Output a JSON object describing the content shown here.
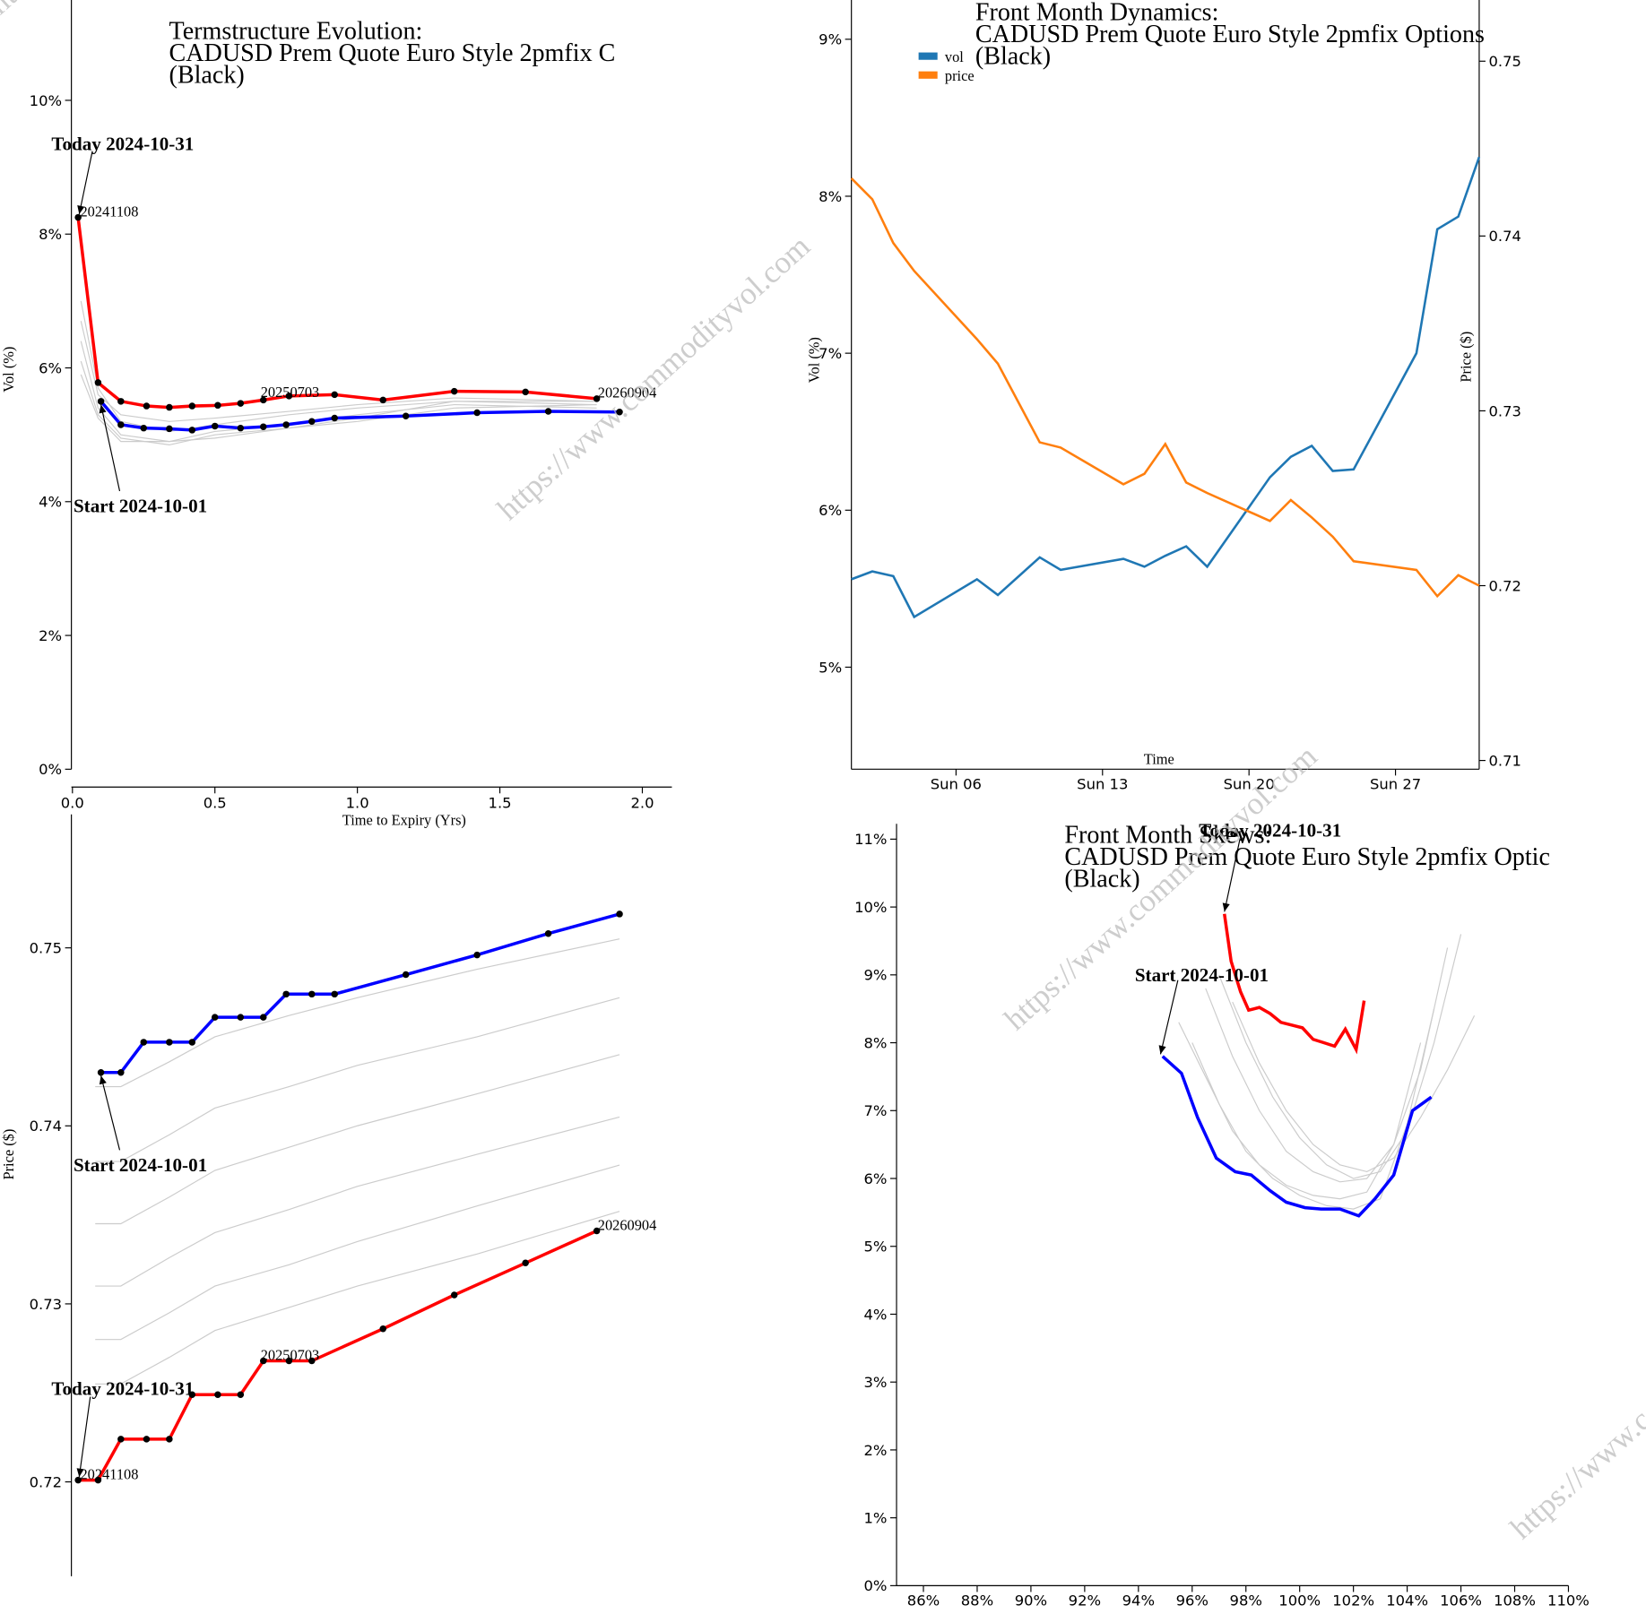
{
  "watermark": "https://www.commodityvol.com",
  "colors": {
    "start": "#0000ff",
    "today": "#ff0000",
    "history": "#cccccc",
    "vol": "#1f77b4",
    "price": "#ff7f0e"
  },
  "chart_data": [
    {
      "id": "termstructure",
      "type": "line",
      "title_lines": [
        "Termstructure Evolution:",
        "CADUSD Prem Quote Euro Style 2pmfix C",
        "(Black)"
      ],
      "xlabel": "Time to Expiry (Yrs)",
      "ylabel": "Vol (%)",
      "xlim": [
        0,
        2.1
      ],
      "ylim": [
        0,
        11.5
      ],
      "xticks": [
        "0.0",
        "0.5",
        "1.0",
        "1.5",
        "2.0"
      ],
      "xtick_values": [
        0,
        0.5,
        1.0,
        1.5,
        2.0
      ],
      "yticks": [
        "0%",
        "2%",
        "4%",
        "6%",
        "8%",
        "10%"
      ],
      "ytick_values": [
        0,
        2,
        4,
        6,
        8,
        10
      ],
      "annotations": {
        "today": "Today 2024-10-31",
        "start": "Start 2024-10-01"
      },
      "point_labels": [
        "20241108",
        "20250703",
        "20260904"
      ],
      "series": [
        {
          "name": "Today 2024-10-31",
          "role": "today",
          "x": [
            0.02,
            0.09,
            0.17,
            0.26,
            0.34,
            0.42,
            0.51,
            0.59,
            0.67,
            0.76,
            0.92,
            1.09,
            1.34,
            1.59,
            1.84
          ],
          "y": [
            8.25,
            5.78,
            5.5,
            5.43,
            5.41,
            5.43,
            5.44,
            5.47,
            5.52,
            5.58,
            5.6,
            5.52,
            5.65,
            5.64,
            5.54
          ]
        },
        {
          "name": "Start 2024-10-01",
          "role": "start",
          "x": [
            0.1,
            0.17,
            0.25,
            0.34,
            0.42,
            0.5,
            0.59,
            0.67,
            0.75,
            0.84,
            0.92,
            1.17,
            1.42,
            1.67,
            1.92
          ],
          "y": [
            5.5,
            5.15,
            5.1,
            5.09,
            5.07,
            5.13,
            5.1,
            5.12,
            5.15,
            5.2,
            5.25,
            5.28,
            5.33,
            5.35,
            5.34
          ]
        },
        {
          "name": "",
          "role": "history",
          "x": [
            0.03,
            0.09,
            0.17,
            0.34,
            0.5,
            0.76,
            1.0,
            1.34,
            1.84
          ],
          "y": [
            7.0,
            5.7,
            5.2,
            5.05,
            5.15,
            5.3,
            5.4,
            5.5,
            5.45
          ]
        },
        {
          "name": "",
          "role": "history",
          "x": [
            0.03,
            0.09,
            0.17,
            0.34,
            0.5,
            0.76,
            1.0,
            1.34,
            1.84
          ],
          "y": [
            6.4,
            5.4,
            5.0,
            4.9,
            5.05,
            5.15,
            5.3,
            5.45,
            5.4
          ]
        },
        {
          "name": "",
          "role": "history",
          "x": [
            0.03,
            0.09,
            0.17,
            0.34,
            0.5,
            0.76,
            1.0,
            1.34,
            1.84
          ],
          "y": [
            6.1,
            5.3,
            4.95,
            4.85,
            5.0,
            5.1,
            5.25,
            5.5,
            5.5
          ]
        },
        {
          "name": "",
          "role": "history",
          "x": [
            0.03,
            0.09,
            0.17,
            0.34,
            0.5,
            0.76,
            1.0,
            1.34,
            1.84
          ],
          "y": [
            6.7,
            5.6,
            5.3,
            5.2,
            5.25,
            5.35,
            5.45,
            5.55,
            5.5
          ]
        },
        {
          "name": "",
          "role": "history",
          "x": [
            0.03,
            0.09,
            0.17,
            0.34,
            0.5,
            0.76,
            1.0,
            1.34,
            1.84
          ],
          "y": [
            5.9,
            5.25,
            4.9,
            4.9,
            4.95,
            5.1,
            5.2,
            5.4,
            5.45
          ]
        }
      ]
    },
    {
      "id": "frontmonth",
      "type": "line",
      "title_lines": [
        "Front Month Dynamics:",
        "CADUSD Prem Quote Euro Style 2pmfix Options",
        "(Black)"
      ],
      "xlabel": "Time",
      "ylabel": "Vol (%)",
      "y2label": "Price ($)",
      "ylim": [
        4.35,
        9.25
      ],
      "y2lim": [
        0.7095,
        0.7535
      ],
      "xlim": [
        1,
        31
      ],
      "xticks": [
        "Sun 06",
        "Sun 13",
        "Sun 20",
        "Sun 27"
      ],
      "xtick_values": [
        6,
        13,
        20,
        27
      ],
      "yticks": [
        "5%",
        "6%",
        "7%",
        "8%",
        "9%"
      ],
      "ytick_values": [
        5,
        6,
        7,
        8,
        9
      ],
      "y2ticks": [
        "0.71",
        "0.72",
        "0.73",
        "0.74",
        "0.75"
      ],
      "y2tick_values": [
        0.71,
        0.72,
        0.73,
        0.74,
        0.75
      ],
      "legend": [
        "vol",
        "price"
      ],
      "legend_position": "top-left",
      "series": [
        {
          "name": "vol",
          "axis": "left",
          "x": [
            1,
            2,
            3,
            4,
            7,
            8,
            10,
            11,
            14,
            15,
            16,
            17,
            18,
            21,
            22,
            23,
            24,
            25,
            28,
            29,
            30,
            31
          ],
          "y": [
            5.56,
            5.61,
            5.58,
            5.32,
            5.56,
            5.46,
            5.7,
            5.62,
            5.69,
            5.64,
            5.71,
            5.77,
            5.64,
            6.21,
            6.34,
            6.41,
            6.25,
            6.26,
            7.0,
            7.79,
            7.87,
            8.25
          ]
        },
        {
          "name": "price",
          "axis": "right",
          "x": [
            1,
            2,
            3,
            4,
            7,
            8,
            10,
            11,
            14,
            15,
            16,
            17,
            18,
            21,
            22,
            23,
            24,
            25,
            28,
            29,
            30,
            31
          ],
          "y": [
            0.7433,
            0.7421,
            0.7396,
            0.738,
            0.7341,
            0.7327,
            0.7282,
            0.7279,
            0.7258,
            0.7264,
            0.7281,
            0.7259,
            0.7253,
            0.7237,
            0.7249,
            0.7239,
            0.7228,
            0.7214,
            0.7209,
            0.7194,
            0.7206,
            0.72
          ]
        }
      ]
    },
    {
      "id": "forwardcurve",
      "type": "line",
      "title_lines": [],
      "ylabel": "Price ($)",
      "xlim": [
        0,
        2.1
      ],
      "ylim": [
        0.7147,
        0.7575
      ],
      "yticks": [
        "0.72",
        "0.73",
        "0.74",
        "0.75"
      ],
      "ytick_values": [
        0.72,
        0.73,
        0.74,
        0.75
      ],
      "annotations": {
        "today": "Today 2024-10-31",
        "start": "Start 2024-10-01"
      },
      "point_labels": [
        "20241108",
        "20250703",
        "20260904"
      ],
      "series": [
        {
          "name": "Start 2024-10-01",
          "role": "start",
          "x": [
            0.1,
            0.17,
            0.25,
            0.34,
            0.42,
            0.5,
            0.59,
            0.67,
            0.75,
            0.84,
            0.92,
            1.17,
            1.42,
            1.67,
            1.92
          ],
          "y": [
            0.743,
            0.743,
            0.7447,
            0.7447,
            0.7447,
            0.7461,
            0.7461,
            0.7461,
            0.7474,
            0.7474,
            0.7474,
            0.7485,
            0.7496,
            0.7508,
            0.7519
          ]
        },
        {
          "name": "Today 2024-10-31",
          "role": "today",
          "x": [
            0.02,
            0.09,
            0.17,
            0.26,
            0.34,
            0.42,
            0.51,
            0.59,
            0.67,
            0.76,
            0.84,
            1.09,
            1.34,
            1.59,
            1.84
          ],
          "y": [
            0.7201,
            0.7201,
            0.7224,
            0.7224,
            0.7224,
            0.7249,
            0.7249,
            0.7249,
            0.7268,
            0.7268,
            0.7268,
            0.7286,
            0.7305,
            0.7323,
            0.7341
          ]
        },
        {
          "name": "",
          "role": "history",
          "x": [
            0.08,
            0.17,
            0.34,
            0.5,
            0.76,
            1.0,
            1.42,
            1.92
          ],
          "y": [
            0.7422,
            0.7422,
            0.7436,
            0.745,
            0.7462,
            0.7472,
            0.7488,
            0.7505
          ]
        },
        {
          "name": "",
          "role": "history",
          "x": [
            0.08,
            0.17,
            0.34,
            0.5,
            0.76,
            1.0,
            1.42,
            1.92
          ],
          "y": [
            0.738,
            0.738,
            0.7395,
            0.741,
            0.7422,
            0.7434,
            0.745,
            0.7472
          ]
        },
        {
          "name": "",
          "role": "history",
          "x": [
            0.08,
            0.17,
            0.34,
            0.5,
            0.76,
            1.0,
            1.42,
            1.92
          ],
          "y": [
            0.7345,
            0.7345,
            0.736,
            0.7375,
            0.7388,
            0.74,
            0.7418,
            0.744
          ]
        },
        {
          "name": "",
          "role": "history",
          "x": [
            0.08,
            0.17,
            0.34,
            0.5,
            0.76,
            1.0,
            1.42,
            1.92
          ],
          "y": [
            0.731,
            0.731,
            0.7326,
            0.734,
            0.7353,
            0.7366,
            0.7384,
            0.7405
          ]
        },
        {
          "name": "",
          "role": "history",
          "x": [
            0.08,
            0.17,
            0.34,
            0.5,
            0.76,
            1.0,
            1.42,
            1.92
          ],
          "y": [
            0.728,
            0.728,
            0.7295,
            0.731,
            0.7322,
            0.7335,
            0.7355,
            0.7378
          ]
        },
        {
          "name": "",
          "role": "history",
          "x": [
            0.08,
            0.17,
            0.34,
            0.5,
            0.76,
            1.0,
            1.42,
            1.92
          ],
          "y": [
            0.7255,
            0.7255,
            0.727,
            0.7285,
            0.7298,
            0.731,
            0.7328,
            0.7352
          ]
        }
      ]
    },
    {
      "id": "skews",
      "type": "line",
      "title_lines": [
        "Front Month Skews:",
        "CADUSD Prem Quote Euro Style 2pmfix Optic",
        "(Black)"
      ],
      "xlim": [
        85,
        110
      ],
      "ylim": [
        0,
        11.35
      ],
      "xticks": [
        "86%",
        "88%",
        "90%",
        "92%",
        "94%",
        "96%",
        "98%",
        "100%",
        "102%",
        "104%",
        "106%",
        "108%",
        "110%"
      ],
      "xtick_values": [
        86,
        88,
        90,
        92,
        94,
        96,
        98,
        100,
        102,
        104,
        106,
        108,
        110
      ],
      "yticks": [
        "0%",
        "1%",
        "2%",
        "3%",
        "4%",
        "5%",
        "6%",
        "7%",
        "8%",
        "9%",
        "10%",
        "11%"
      ],
      "ytick_values": [
        0,
        1,
        2,
        3,
        4,
        5,
        6,
        7,
        8,
        9,
        10,
        11
      ],
      "annotations": {
        "today": "Today 2024-10-31",
        "start": "Start 2024-10-01"
      },
      "series": [
        {
          "name": "Start 2024-10-01",
          "role": "start",
          "x": [
            94.9,
            95.6,
            96.2,
            96.9,
            97.6,
            98.2,
            98.9,
            99.5,
            100.2,
            100.8,
            101.5,
            102.2,
            102.8,
            103.5,
            104.2,
            104.9
          ],
          "y": [
            7.8,
            7.55,
            6.9,
            6.3,
            6.1,
            6.05,
            5.82,
            5.65,
            5.57,
            5.55,
            5.55,
            5.45,
            5.7,
            6.05,
            7.0,
            7.2
          ]
        },
        {
          "name": "Today 2024-10-31",
          "role": "today",
          "x": [
            97.2,
            97.45,
            97.8,
            98.1,
            98.5,
            98.9,
            99.3,
            99.7,
            100.1,
            100.5,
            100.9,
            101.3,
            101.7,
            102.1,
            102.4
          ],
          "y": [
            9.9,
            9.2,
            8.75,
            8.48,
            8.52,
            8.43,
            8.3,
            8.26,
            8.22,
            8.05,
            8.0,
            7.95,
            8.2,
            7.9,
            8.62
          ]
        },
        {
          "name": "",
          "role": "history",
          "x": [
            95.5,
            96.5,
            97.5,
            98.5,
            99.5,
            100.5,
            101.5,
            102.5,
            103.5,
            104.5
          ],
          "y": [
            8.3,
            7.5,
            6.7,
            6.2,
            5.9,
            5.75,
            5.7,
            5.8,
            6.5,
            8.0
          ]
        },
        {
          "name": "",
          "role": "history",
          "x": [
            96.0,
            97.0,
            98.0,
            99.0,
            100.0,
            101.0,
            102.0,
            103.0,
            104.0,
            105.0
          ],
          "y": [
            8.0,
            7.1,
            6.4,
            6.0,
            5.75,
            5.6,
            5.55,
            5.7,
            6.8,
            8.5
          ]
        },
        {
          "name": "",
          "role": "history",
          "x": [
            96.5,
            97.5,
            98.5,
            99.5,
            100.5,
            101.5,
            102.5,
            103.5,
            104.5,
            105.5
          ],
          "y": [
            8.8,
            7.8,
            7.0,
            6.4,
            6.1,
            5.95,
            6.0,
            6.5,
            7.6,
            9.4
          ]
        },
        {
          "name": "",
          "role": "history",
          "x": [
            97.0,
            98.0,
            99.0,
            100.0,
            101.0,
            102.0,
            103.0,
            104.0,
            105.0,
            106.0
          ],
          "y": [
            9.0,
            8.0,
            7.2,
            6.6,
            6.2,
            6.0,
            6.1,
            6.7,
            8.0,
            9.6
          ]
        },
        {
          "name": "",
          "role": "history",
          "x": [
            97.5,
            98.5,
            99.5,
            100.5,
            101.5,
            102.5,
            103.5,
            104.5,
            105.5,
            106.5
          ],
          "y": [
            8.6,
            7.7,
            7.0,
            6.5,
            6.2,
            6.1,
            6.3,
            6.9,
            7.6,
            8.4
          ]
        }
      ]
    }
  ]
}
